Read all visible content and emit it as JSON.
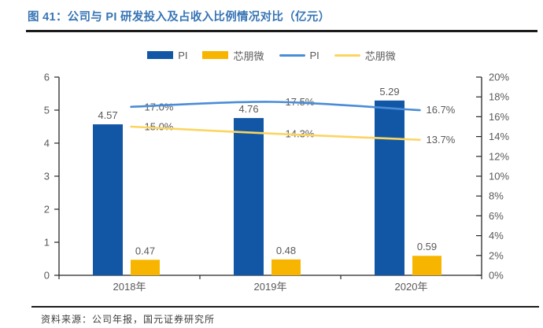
{
  "figure": {
    "title": "图 41：公司与 PI 研发投入及占收入比例情况对比（亿元）",
    "source": "资料来源：公司年报，国元证券研究所"
  },
  "colors": {
    "title_blue": "#3774B5",
    "bar_pi_blue": "#1257A6",
    "bar_xpw_yellow": "#F8B500",
    "line_pi_blue": "#4A8CD6",
    "line_xpw_yellow": "#FBD560",
    "text_gray": "#595959",
    "axis_dark": "#262626",
    "rule_dark": "#1B1B1B"
  },
  "chart_data": {
    "type": "combo-bar-line",
    "categories": [
      "2018年",
      "2019年",
      "2020年"
    ],
    "bar_series": [
      {
        "name": "PI",
        "values": [
          4.57,
          4.76,
          5.29
        ],
        "labels": [
          "4.57",
          "4.76",
          "5.29"
        ],
        "color": "#1257A6",
        "axis": "left"
      },
      {
        "name": "芯朋微",
        "values": [
          0.47,
          0.48,
          0.59
        ],
        "labels": [
          "0.47",
          "0.48",
          "0.59"
        ],
        "color": "#F8B500",
        "axis": "left"
      }
    ],
    "line_series": [
      {
        "name": "PI",
        "values_pct": [
          17.0,
          17.5,
          16.7
        ],
        "labels": [
          "17.0%",
          "17.5%",
          "16.7%"
        ],
        "color": "#4A8CD6",
        "axis": "right"
      },
      {
        "name": "芯朋微",
        "values_pct": [
          15.0,
          14.3,
          13.7
        ],
        "labels": [
          "15.0%",
          "14.3%",
          "13.7%"
        ],
        "color": "#FBD560",
        "axis": "right"
      }
    ],
    "left_axis": {
      "min": 0,
      "max": 6,
      "step": 1,
      "ticks": [
        "0",
        "1",
        "2",
        "3",
        "4",
        "5",
        "6"
      ]
    },
    "right_axis": {
      "min": 0,
      "max": 20,
      "step": 2,
      "ticks": [
        "0%",
        "2%",
        "4%",
        "6%",
        "8%",
        "10%",
        "12%",
        "14%",
        "16%",
        "18%",
        "20%"
      ]
    },
    "legend": [
      {
        "label": "PI",
        "swatch": "bar",
        "color": "#1257A6"
      },
      {
        "label": "芯朋微",
        "swatch": "bar",
        "color": "#F8B500"
      },
      {
        "label": "PI",
        "swatch": "line",
        "color": "#4A8CD6"
      },
      {
        "label": "芯朋微",
        "swatch": "line",
        "color": "#FBD560"
      }
    ],
    "grid": "off",
    "legend_position": "top-center"
  }
}
